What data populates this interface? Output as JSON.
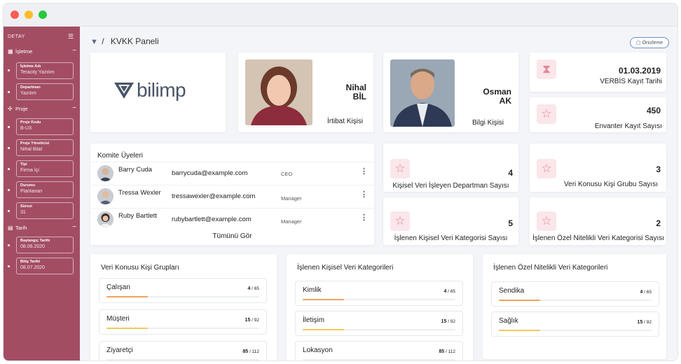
{
  "sidebar": {
    "title": "DETAY",
    "sections": [
      {
        "label": "İşletme",
        "fields": [
          {
            "label": "İşletme Adı",
            "value": "Teracity Yazılım"
          },
          {
            "label": "Departman",
            "value": "Yazılım"
          }
        ]
      },
      {
        "label": "Proje",
        "fields": [
          {
            "label": "Proje Kodu",
            "value": "B-UX"
          },
          {
            "label": "Proje Yöneticisi",
            "value": "Nihal Bilal"
          },
          {
            "label": "Tipi",
            "value": "Firma İçi"
          },
          {
            "label": "Durumu",
            "value": "Planlanan"
          },
          {
            "label": "Süresi",
            "value": "31"
          }
        ]
      },
      {
        "label": "Tarih",
        "fields": [
          {
            "label": "Başlangıç Tarihi",
            "value": "08.06.2020"
          },
          {
            "label": "Bitiş Tarihi",
            "value": "08.07.2020"
          }
        ]
      }
    ]
  },
  "header": {
    "separator": "/",
    "title": "KVKK Paneli",
    "preview_label": "Önizleme"
  },
  "brand": {
    "name": "bilimp"
  },
  "contacts": [
    {
      "first": "Nihal",
      "last": "BİL",
      "role": "İrtibat Kişisi"
    },
    {
      "first": "Osman",
      "last": "AK",
      "role": "Bilgi Kişisi"
    }
  ],
  "verbis": {
    "date": "01.03.2019",
    "label": "VERBİS Kayıt Tarihi"
  },
  "inventory": {
    "count": "450",
    "label": "Envanter Kayıt Sayısı"
  },
  "stats": [
    {
      "value": "4",
      "label": "Kişisel Veri İşleyen Departman Sayısı"
    },
    {
      "value": "3",
      "label": "Veri Konusu Kişi Grubu Sayısı"
    },
    {
      "value": "5",
      "label": "İşlenen Kişisel Veri Kategorisi Sayısı"
    },
    {
      "value": "2",
      "label": "İşlenen Özel Nitelikli Veri Kategorisi Sayısı"
    }
  ],
  "committee": {
    "title": "Komite Üyeleri",
    "see_all": "Tümünü Gör",
    "members": [
      {
        "name": "Barry Cuda",
        "email": "barrycuda@example.com",
        "role": "CEO"
      },
      {
        "name": "Tressa Wexler",
        "email": "tressawexler@example.com",
        "role": "Manager"
      },
      {
        "name": "Ruby Bartlett",
        "email": "rubybartlett@example.com",
        "role": "Manager"
      }
    ]
  },
  "panels": [
    {
      "title": "Veri Konusu Kişi Grupları",
      "items": [
        {
          "name": "Çalışan",
          "count": "4",
          "total": "65",
          "ratio": 0.27,
          "color": "#f0a25e"
        },
        {
          "name": "Müşteri",
          "count": "15",
          "total": "92",
          "ratio": 0.27,
          "color": "#f3c85c"
        },
        {
          "name": "Ziyaretçi",
          "count": "85",
          "total": "112",
          "ratio": 0.0,
          "color": "#f3c85c"
        }
      ]
    },
    {
      "title": "İşlenen Kişisel Veri Kategorileri",
      "items": [
        {
          "name": "Kimlik",
          "count": "4",
          "total": "65",
          "ratio": 0.27,
          "color": "#f0a25e"
        },
        {
          "name": "İletişim",
          "count": "15",
          "total": "92",
          "ratio": 0.27,
          "color": "#f3c85c"
        },
        {
          "name": "Lokasyon",
          "count": "85",
          "total": "112",
          "ratio": 0.0,
          "color": "#f3c85c"
        }
      ]
    },
    {
      "title": "İşlenen Özel Nitelikli Veri Kategorileri",
      "items": [
        {
          "name": "Sendika",
          "count": "4",
          "total": "65",
          "ratio": 0.27,
          "color": "#f0a25e"
        },
        {
          "name": "Sağlık",
          "count": "15",
          "total": "92",
          "ratio": 0.27,
          "color": "#f3c85c"
        }
      ]
    }
  ],
  "icons": {
    "menu": "tune-icon",
    "star": "star-icon",
    "hourglass": "hourglass-icon",
    "more": "more-vertical-icon"
  },
  "colors": {
    "sidebar": "#a34d63",
    "accent_pink": "#e08798",
    "bar_orange": "#f0a25e",
    "bar_yellow": "#f3c85c"
  }
}
